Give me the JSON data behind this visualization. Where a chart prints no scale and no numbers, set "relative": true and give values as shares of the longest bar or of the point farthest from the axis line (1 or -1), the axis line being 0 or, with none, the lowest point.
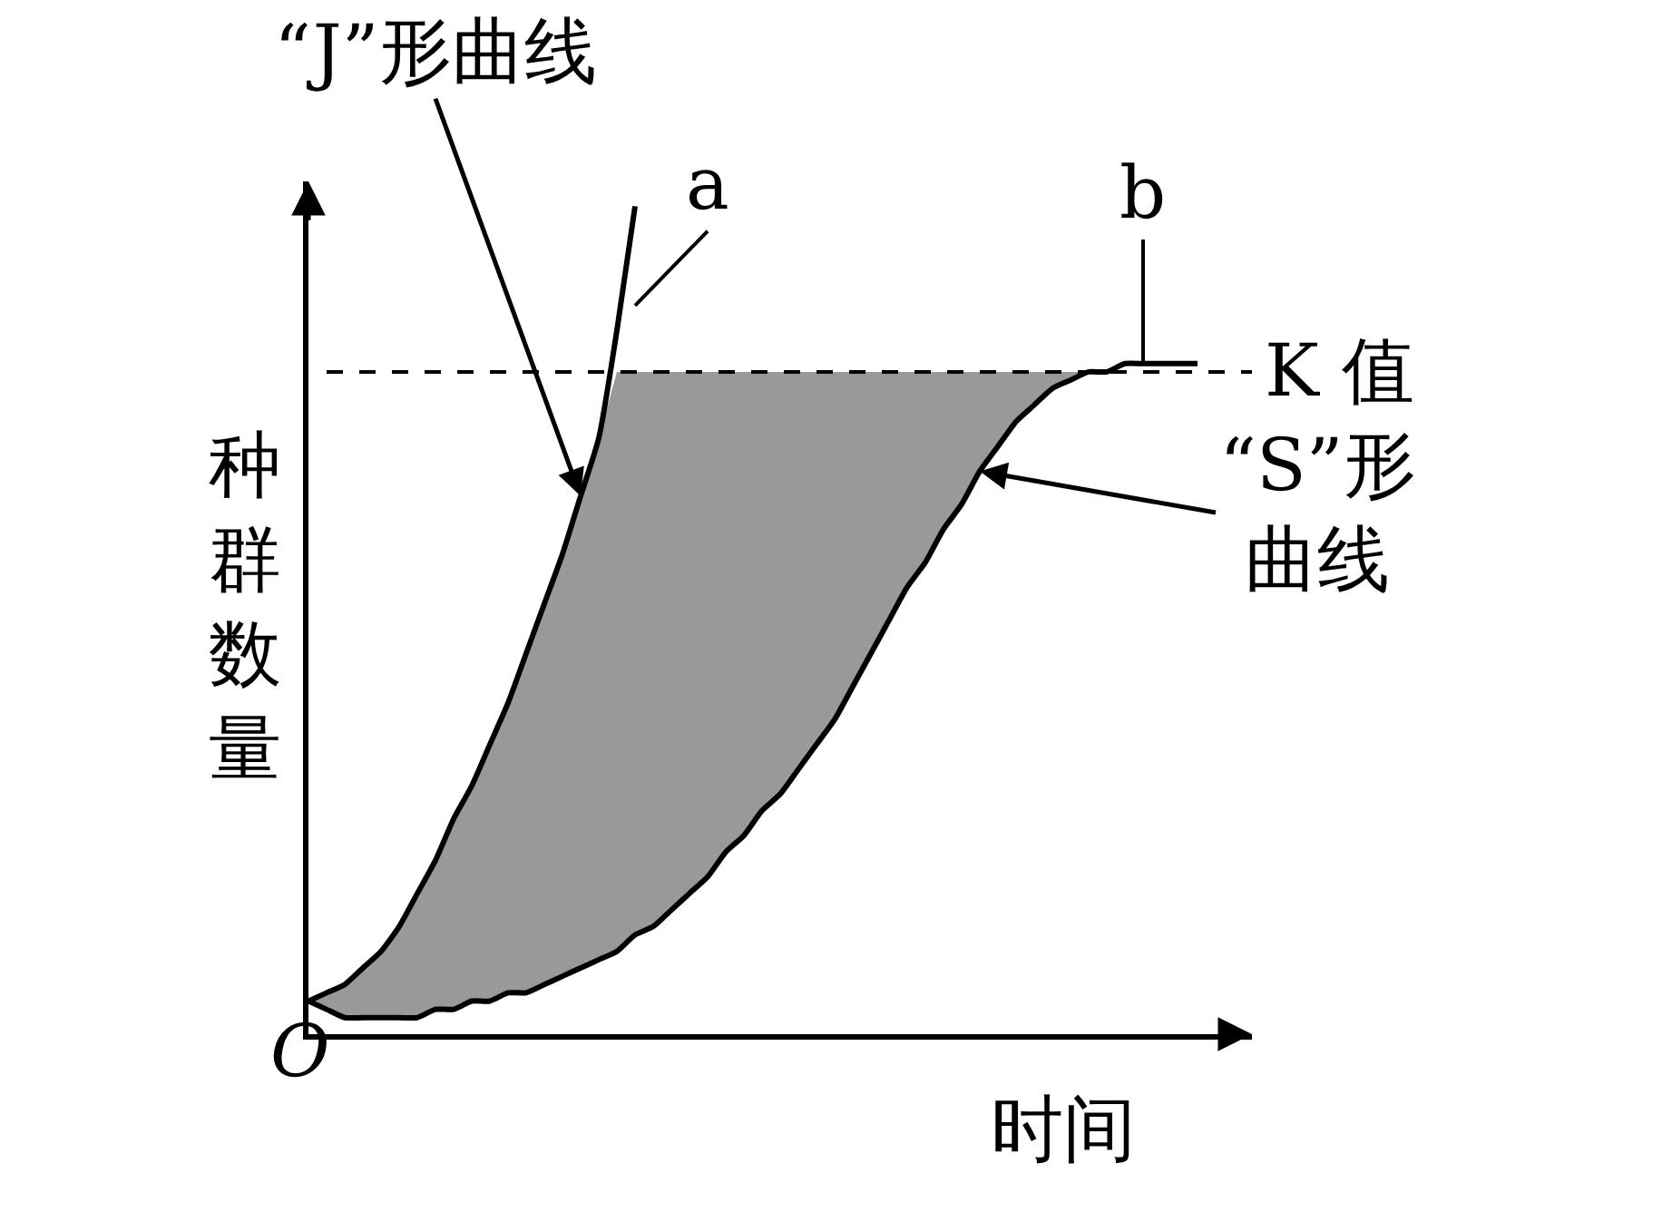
{
  "chart_data": {
    "type": "line",
    "relative": true,
    "xlabel": "时间",
    "ylabel": "种群数量",
    "legend": false,
    "marker": "none",
    "line_style": "solid",
    "categories": [
      null,
      null,
      null,
      null,
      null,
      null,
      null,
      null,
      null,
      null,
      null,
      null,
      null,
      null,
      null,
      null,
      null,
      null,
      null,
      null,
      null,
      null,
      null,
      null,
      null,
      null,
      null,
      null,
      null,
      null,
      null,
      null,
      null,
      null,
      null,
      null,
      null,
      null,
      null,
      null,
      null,
      null,
      null,
      null,
      null,
      null,
      null,
      null,
      null,
      null
    ],
    "series": [
      {
        "color": "#000000",
        "values": [
          0.04,
          0.05,
          0.06,
          0.08,
          0.1,
          0.13,
          0.17,
          0.21,
          0.26,
          0.3,
          0.35,
          0.4,
          0.46,
          0.52,
          0.58,
          0.65,
          0.72,
          0.85,
          1.0,
          null,
          null,
          null,
          null,
          null,
          null,
          null,
          null,
          null,
          null,
          null,
          null,
          null,
          null,
          null,
          null,
          null,
          null,
          null,
          null,
          null,
          null,
          null,
          null,
          null,
          null,
          null,
          null,
          null,
          null,
          null
        ]
      },
      {
        "color": "#000000",
        "values": [
          0.04,
          0.03,
          0.02,
          0.02,
          0.02,
          0.02,
          0.02,
          0.03,
          0.03,
          0.04,
          0.04,
          0.05,
          0.05,
          0.06,
          0.07,
          0.08,
          0.09,
          0.1,
          0.12,
          0.13,
          0.15,
          0.17,
          0.19,
          0.22,
          0.24,
          0.27,
          0.29,
          0.32,
          0.35,
          0.38,
          0.42,
          0.46,
          0.5,
          0.54,
          0.57,
          0.61,
          0.64,
          0.68,
          0.71,
          0.74,
          0.76,
          0.78,
          0.79,
          0.8,
          0.8,
          0.81,
          0.81,
          0.81,
          0.81,
          0.81
        ],
        "lower": [
          0.04,
          0.03,
          0.02,
          0.02,
          0.02,
          0.02,
          0.02,
          0.03,
          0.03,
          0.04,
          0.04,
          0.05,
          0.05,
          0.06,
          0.07,
          0.08,
          0.09,
          0.1,
          0.12,
          0.13,
          0.15,
          0.17,
          0.19,
          0.22,
          0.24,
          0.27,
          0.29,
          0.32,
          0.35,
          0.38,
          0.42,
          0.46,
          0.5,
          0.54,
          0.57,
          0.61,
          0.64,
          0.68,
          0.71,
          0.74,
          0.76,
          0.78,
          0.79,
          0.8,
          null,
          null,
          null,
          null,
          null,
          null
        ],
        "upper": [
          0.04,
          0.05,
          0.06,
          0.08,
          0.1,
          0.13,
          0.17,
          0.21,
          0.26,
          0.3,
          0.35,
          0.4,
          0.46,
          0.52,
          0.58,
          0.65,
          0.72,
          0.8,
          0.8,
          0.8,
          0.8,
          0.8,
          0.8,
          0.8,
          0.8,
          0.8,
          0.8,
          0.8,
          0.8,
          0.8,
          0.8,
          0.8,
          0.8,
          0.8,
          0.8,
          0.8,
          0.8,
          0.8,
          0.8,
          0.8,
          0.8,
          0.8,
          0.8,
          0.8,
          null,
          null,
          null,
          null,
          null,
          null
        ]
      }
    ],
    "ref_lines": [
      {
        "axis": "y",
        "value": 0.8,
        "label": "K 值",
        "line_style": "dashed",
        "color": "#000000"
      }
    ],
    "annotations": [
      "“J”形曲线",
      "“S”形曲线",
      "a",
      "b",
      "O"
    ]
  }
}
